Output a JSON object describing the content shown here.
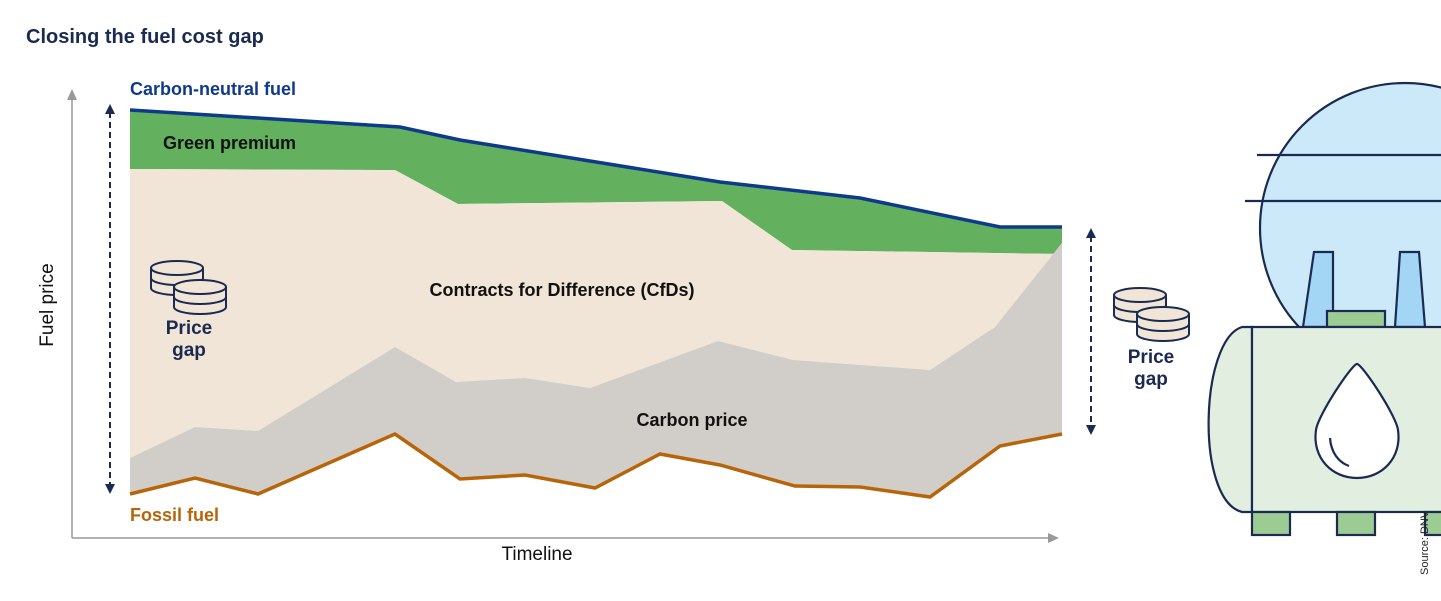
{
  "title": "Closing the fuel cost gap",
  "labels": {
    "carbon_neutral": "Carbon-neutral fuel",
    "fossil": "Fossil fuel",
    "green_premium": "Green premium",
    "cfds": "Contracts for Difference (CfDs)",
    "carbon_price": "Carbon price",
    "price_gap_left_1": "Price",
    "price_gap_left_2": "gap",
    "price_gap_right_1": "Price",
    "price_gap_right_2": "gap",
    "y_axis": "Fuel price",
    "x_axis": "Timeline",
    "source": "Source: DNV"
  },
  "colors": {
    "carbon_neutral": "#0e3a8c",
    "fossil": "#b8650a",
    "green_premium": "#63b05e",
    "cfds": "#f0e5d6",
    "carbon_price": "#d1cdc8",
    "navy": "#1a2a50",
    "sphere": "#cbe9f9",
    "tank": "#e2efe0"
  },
  "icons": [
    "coins-icon",
    "fuel-tank-illustration",
    "drop-icon"
  ]
}
